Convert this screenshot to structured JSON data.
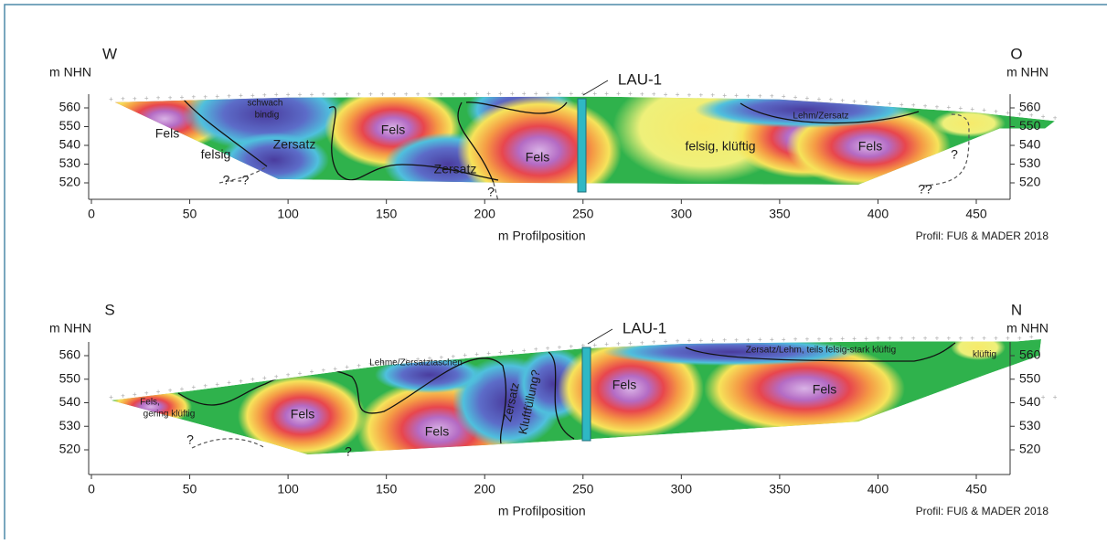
{
  "panels": [
    {
      "left_direction": "W",
      "right_direction": "O",
      "left_unit": "m NHN",
      "right_unit": "m NHN",
      "xticks": [
        0,
        50,
        100,
        150,
        200,
        250,
        300,
        350,
        400,
        450
      ],
      "yticks": [
        520,
        530,
        540,
        550,
        560
      ],
      "x_label": "m Profilposition",
      "credit": "Profil: FUß & MADER 2018",
      "well": "LAU-1",
      "annotations": [
        "Fels",
        "felsig",
        "Zersatz",
        "schwach",
        "bindig",
        "Fels",
        "Zersatz",
        "Fels",
        "felsig, klüftig",
        "Lehm/Zersatz",
        "Fels",
        "?",
        "?- -?",
        "?",
        "??"
      ]
    },
    {
      "left_direction": "S",
      "right_direction": "N",
      "left_unit": "m NHN",
      "right_unit": "m NHN",
      "xticks": [
        0,
        50,
        100,
        150,
        200,
        250,
        300,
        350,
        400,
        450
      ],
      "yticks": [
        520,
        530,
        540,
        550,
        560
      ],
      "x_label": "m Profilposition",
      "credit": "Profil: FUß & MADER 2018",
      "well": "LAU-1",
      "annotations": [
        "Fels,",
        "gering klüftig",
        "Fels",
        "Lehme/Zersatztaschen",
        "Fels",
        "Zersatz",
        "Kluftfüllung?",
        "Fels",
        "Fels",
        "Zersatz/Lehm, teils felsig-stark klüftig",
        "klüftig",
        "?",
        "?"
      ]
    }
  ]
}
